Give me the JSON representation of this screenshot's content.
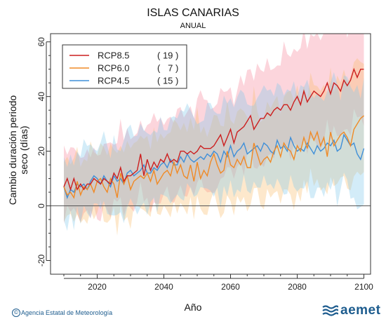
{
  "chart_data": {
    "type": "line",
    "title": "ISLAS CANARIAS",
    "subtitle": "ANUAL",
    "xlabel": "Año",
    "ylabel": "Cambio duración periodo seco (días)",
    "xlim": [
      2006,
      2102
    ],
    "ylim": [
      -25,
      63
    ],
    "xticks": [
      2020,
      2040,
      2060,
      2080,
      2100
    ],
    "yticks": [
      -20,
      0,
      20,
      40,
      60
    ],
    "legend_position": "top-left",
    "grid": false,
    "x_start": 2010,
    "x_end": 2100,
    "series": [
      {
        "name": "RCP8.5",
        "count": "( 19 )",
        "color": "#cc1f1f",
        "band_color": "rgba(245,135,155,0.35)",
        "values": [
          7,
          10,
          6,
          10,
          6,
          8,
          6,
          8,
          8,
          10,
          9,
          8,
          10,
          9,
          8,
          12,
          10,
          14,
          9,
          11,
          11,
          12,
          13,
          19,
          11,
          17,
          13,
          16,
          14,
          17,
          16,
          19,
          16,
          17,
          16,
          20,
          20,
          19,
          20,
          19,
          20,
          22,
          21,
          21,
          21,
          22,
          24,
          26,
          22,
          25,
          28,
          23,
          27,
          28,
          29,
          31,
          33,
          28,
          30,
          32,
          32,
          34,
          33,
          35,
          36,
          35,
          37,
          37,
          35,
          38,
          40,
          37,
          42,
          38,
          40,
          42,
          41,
          40,
          42,
          45,
          41,
          45,
          44,
          42,
          46,
          44,
          46,
          50,
          47,
          50,
          50
        ]
      },
      {
        "name": "RCP6.0",
        "count": "(   7 )",
        "color": "#f08a26",
        "band_color": "rgba(250,190,110,0.35)",
        "values": [
          7,
          4,
          5,
          3,
          9,
          4,
          7,
          6,
          8,
          5,
          9,
          10,
          7,
          5,
          10,
          8,
          3,
          12,
          8,
          11,
          6,
          9,
          10,
          11,
          10,
          12,
          9,
          13,
          8,
          10,
          12,
          13,
          11,
          16,
          12,
          15,
          11,
          10,
          15,
          9,
          16,
          10,
          13,
          11,
          16,
          19,
          15,
          12,
          13,
          20,
          15,
          14,
          17,
          15,
          18,
          14,
          14,
          23,
          19,
          15,
          17,
          18,
          16,
          20,
          22,
          18,
          23,
          21,
          20,
          17,
          22,
          20,
          25,
          21,
          27,
          24,
          27,
          22,
          25,
          18,
          27,
          22,
          24,
          26,
          27,
          25,
          22,
          28,
          30,
          32,
          33
        ]
      },
      {
        "name": "RCP4.5",
        "count": "( 15 )",
        "color": "#3f8fd8",
        "band_color": "rgba(130,200,235,0.35)",
        "values": [
          7,
          3,
          6,
          5,
          8,
          7,
          8,
          6,
          9,
          11,
          10,
          8,
          11,
          9,
          7,
          11,
          9,
          10,
          8,
          12,
          13,
          11,
          12,
          13,
          15,
          12,
          12,
          14,
          13,
          15,
          16,
          14,
          17,
          15,
          15,
          18,
          16,
          19,
          17,
          16,
          17,
          18,
          17,
          19,
          18,
          20,
          19,
          16,
          20,
          18,
          22,
          18,
          20,
          21,
          23,
          19,
          20,
          21,
          22,
          20,
          23,
          22,
          20,
          19,
          24,
          21,
          22,
          20,
          25,
          22,
          20,
          21,
          20,
          23,
          21,
          19,
          22,
          20,
          21,
          23,
          22,
          24,
          20,
          21,
          26,
          24,
          22,
          23,
          19,
          17,
          21
        ]
      }
    ]
  },
  "footer": {
    "credit": "Agencia Estatal de Meteorología",
    "logo_text": "aemet"
  }
}
